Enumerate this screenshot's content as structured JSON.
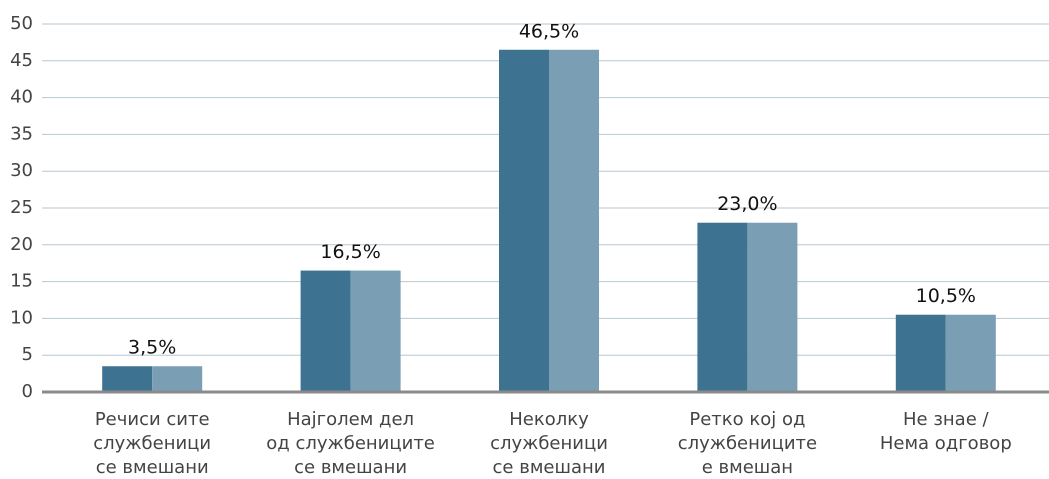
{
  "chart_data": {
    "type": "bar",
    "categories": [
      [
        "Речиси сите",
        "службеници",
        "се вмешани"
      ],
      [
        "Најголем дел",
        "од службениците",
        "се вмешани"
      ],
      [
        "Неколку",
        "службеници",
        "се вмешани"
      ],
      [
        "Ретко кој од",
        "службениците",
        "е вмешан"
      ],
      [
        "Не знае /",
        "Нема одговор"
      ]
    ],
    "values": [
      3.5,
      16.5,
      46.5,
      23.0,
      10.5
    ],
    "value_labels": [
      "3,5%",
      "16,5%",
      "46,5%",
      "23,0%",
      "10,5%"
    ],
    "color": [
      "#3d7390",
      "#7a9fb5"
    ],
    "ylim": [
      0,
      50
    ],
    "yticks": [
      0,
      5,
      10,
      15,
      20,
      25,
      30,
      35,
      40,
      45,
      50
    ],
    "grid": true
  }
}
